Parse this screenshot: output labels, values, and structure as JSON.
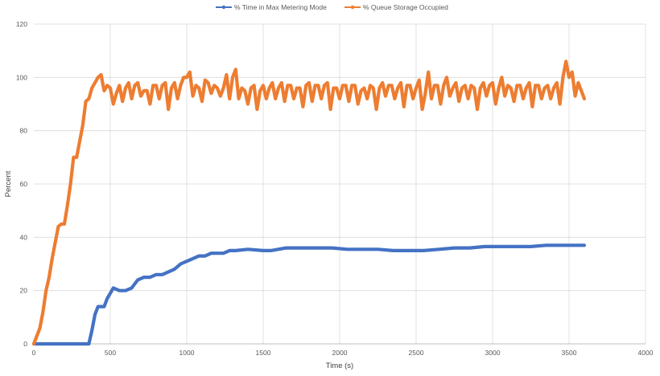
{
  "chart_data": {
    "type": "line",
    "title": "",
    "xlabel": "Time (s)",
    "ylabel": "Percent",
    "xlim": [
      0,
      4000
    ],
    "ylim": [
      0,
      120
    ],
    "xticks": [
      0,
      500,
      1000,
      1500,
      2000,
      2500,
      3000,
      3500,
      4000
    ],
    "yticks": [
      0,
      20,
      40,
      60,
      80,
      100,
      120
    ],
    "grid": true,
    "legend_position": "top",
    "series": [
      {
        "name": "% Time in Max Metering Mode",
        "color": "#4472C4",
        "points": [
          [
            0,
            0
          ],
          [
            100,
            0
          ],
          [
            200,
            0
          ],
          [
            300,
            0
          ],
          [
            360,
            0
          ],
          [
            380,
            5
          ],
          [
            400,
            11
          ],
          [
            420,
            14
          ],
          [
            440,
            14
          ],
          [
            460,
            14
          ],
          [
            480,
            17
          ],
          [
            500,
            19
          ],
          [
            520,
            21
          ],
          [
            560,
            20
          ],
          [
            600,
            20
          ],
          [
            640,
            21
          ],
          [
            680,
            24
          ],
          [
            720,
            25
          ],
          [
            760,
            25
          ],
          [
            800,
            26
          ],
          [
            840,
            26
          ],
          [
            880,
            27
          ],
          [
            920,
            28
          ],
          [
            960,
            30
          ],
          [
            1000,
            31
          ],
          [
            1040,
            32
          ],
          [
            1080,
            33
          ],
          [
            1120,
            33
          ],
          [
            1160,
            34
          ],
          [
            1200,
            34
          ],
          [
            1240,
            34
          ],
          [
            1280,
            35
          ],
          [
            1320,
            35
          ],
          [
            1400,
            35.5
          ],
          [
            1500,
            35
          ],
          [
            1550,
            35
          ],
          [
            1650,
            36
          ],
          [
            1750,
            36
          ],
          [
            1850,
            36
          ],
          [
            1950,
            36
          ],
          [
            2050,
            35.5
          ],
          [
            2150,
            35.5
          ],
          [
            2250,
            35.5
          ],
          [
            2350,
            35
          ],
          [
            2450,
            35
          ],
          [
            2550,
            35
          ],
          [
            2650,
            35.5
          ],
          [
            2750,
            36
          ],
          [
            2850,
            36
          ],
          [
            2950,
            36.5
          ],
          [
            3050,
            36.5
          ],
          [
            3150,
            36.5
          ],
          [
            3250,
            36.5
          ],
          [
            3350,
            37
          ],
          [
            3450,
            37
          ],
          [
            3550,
            37
          ],
          [
            3600,
            37
          ]
        ]
      },
      {
        "name": "% Queue Storage Occupied",
        "color": "#ED7D31",
        "points": [
          [
            0,
            0
          ],
          [
            20,
            3
          ],
          [
            40,
            6
          ],
          [
            60,
            12
          ],
          [
            80,
            20
          ],
          [
            100,
            25
          ],
          [
            120,
            32
          ],
          [
            140,
            38
          ],
          [
            160,
            44
          ],
          [
            180,
            45
          ],
          [
            200,
            45
          ],
          [
            220,
            52
          ],
          [
            240,
            60
          ],
          [
            260,
            70
          ],
          [
            280,
            70
          ],
          [
            300,
            76
          ],
          [
            320,
            82
          ],
          [
            340,
            91
          ],
          [
            360,
            92
          ],
          [
            380,
            96
          ],
          [
            400,
            98
          ],
          [
            420,
            100
          ],
          [
            440,
            101
          ],
          [
            460,
            95
          ],
          [
            480,
            97
          ],
          [
            500,
            96
          ],
          [
            520,
            90
          ],
          [
            540,
            94
          ],
          [
            560,
            97
          ],
          [
            580,
            91
          ],
          [
            600,
            96
          ],
          [
            620,
            98
          ],
          [
            640,
            92
          ],
          [
            660,
            97
          ],
          [
            680,
            98
          ],
          [
            700,
            93
          ],
          [
            720,
            95
          ],
          [
            740,
            95
          ],
          [
            760,
            90
          ],
          [
            780,
            97
          ],
          [
            800,
            97
          ],
          [
            820,
            92
          ],
          [
            840,
            97
          ],
          [
            860,
            98
          ],
          [
            880,
            88
          ],
          [
            900,
            96
          ],
          [
            920,
            98
          ],
          [
            940,
            92
          ],
          [
            960,
            97
          ],
          [
            980,
            100
          ],
          [
            1000,
            100
          ],
          [
            1020,
            102
          ],
          [
            1040,
            93
          ],
          [
            1060,
            97
          ],
          [
            1080,
            96
          ],
          [
            1100,
            91
          ],
          [
            1120,
            99
          ],
          [
            1140,
            98
          ],
          [
            1160,
            94
          ],
          [
            1180,
            97
          ],
          [
            1200,
            96
          ],
          [
            1220,
            93
          ],
          [
            1240,
            96
          ],
          [
            1260,
            101
          ],
          [
            1280,
            92
          ],
          [
            1300,
            100
          ],
          [
            1320,
            103
          ],
          [
            1340,
            92
          ],
          [
            1360,
            96
          ],
          [
            1380,
            95
          ],
          [
            1400,
            90
          ],
          [
            1420,
            96
          ],
          [
            1440,
            97
          ],
          [
            1460,
            88
          ],
          [
            1480,
            95
          ],
          [
            1500,
            97
          ],
          [
            1520,
            92
          ],
          [
            1540,
            96
          ],
          [
            1560,
            98
          ],
          [
            1580,
            92
          ],
          [
            1600,
            96
          ],
          [
            1620,
            98
          ],
          [
            1640,
            91
          ],
          [
            1660,
            97
          ],
          [
            1680,
            97
          ],
          [
            1700,
            92
          ],
          [
            1720,
            96
          ],
          [
            1740,
            96
          ],
          [
            1760,
            89
          ],
          [
            1780,
            97
          ],
          [
            1800,
            98
          ],
          [
            1820,
            91
          ],
          [
            1840,
            97
          ],
          [
            1860,
            97
          ],
          [
            1880,
            92
          ],
          [
            1900,
            97
          ],
          [
            1920,
            98
          ],
          [
            1940,
            88
          ],
          [
            1960,
            96
          ],
          [
            1980,
            96
          ],
          [
            2000,
            92
          ],
          [
            2020,
            97
          ],
          [
            2040,
            97
          ],
          [
            2060,
            91
          ],
          [
            2080,
            97
          ],
          [
            2100,
            97
          ],
          [
            2120,
            90
          ],
          [
            2140,
            95
          ],
          [
            2160,
            96
          ],
          [
            2180,
            92
          ],
          [
            2200,
            97
          ],
          [
            2220,
            96
          ],
          [
            2240,
            88
          ],
          [
            2260,
            96
          ],
          [
            2280,
            98
          ],
          [
            2300,
            93
          ],
          [
            2320,
            97
          ],
          [
            2340,
            97
          ],
          [
            2360,
            92
          ],
          [
            2380,
            96
          ],
          [
            2400,
            98
          ],
          [
            2420,
            89
          ],
          [
            2440,
            97
          ],
          [
            2460,
            97
          ],
          [
            2480,
            92
          ],
          [
            2500,
            96
          ],
          [
            2520,
            99
          ],
          [
            2540,
            88
          ],
          [
            2560,
            94
          ],
          [
            2580,
            102
          ],
          [
            2600,
            92
          ],
          [
            2620,
            97
          ],
          [
            2640,
            97
          ],
          [
            2660,
            90
          ],
          [
            2680,
            97
          ],
          [
            2700,
            100
          ],
          [
            2720,
            93
          ],
          [
            2740,
            96
          ],
          [
            2760,
            98
          ],
          [
            2780,
            91
          ],
          [
            2800,
            96
          ],
          [
            2820,
            97
          ],
          [
            2840,
            92
          ],
          [
            2860,
            97
          ],
          [
            2880,
            96
          ],
          [
            2900,
            88
          ],
          [
            2920,
            96
          ],
          [
            2940,
            98
          ],
          [
            2960,
            93
          ],
          [
            2980,
            97
          ],
          [
            3000,
            98
          ],
          [
            3020,
            90
          ],
          [
            3040,
            96
          ],
          [
            3060,
            100
          ],
          [
            3080,
            93
          ],
          [
            3100,
            97
          ],
          [
            3120,
            96
          ],
          [
            3140,
            91
          ],
          [
            3160,
            97
          ],
          [
            3180,
            97
          ],
          [
            3200,
            92
          ],
          [
            3220,
            96
          ],
          [
            3240,
            98
          ],
          [
            3260,
            89
          ],
          [
            3280,
            97
          ],
          [
            3300,
            97
          ],
          [
            3320,
            92
          ],
          [
            3340,
            96
          ],
          [
            3360,
            97
          ],
          [
            3380,
            92
          ],
          [
            3400,
            96
          ],
          [
            3420,
            98
          ],
          [
            3440,
            90
          ],
          [
            3460,
            100
          ],
          [
            3480,
            106
          ],
          [
            3500,
            100
          ],
          [
            3520,
            102
          ],
          [
            3540,
            93
          ],
          [
            3560,
            98
          ],
          [
            3580,
            95
          ],
          [
            3600,
            92
          ]
        ]
      }
    ]
  }
}
